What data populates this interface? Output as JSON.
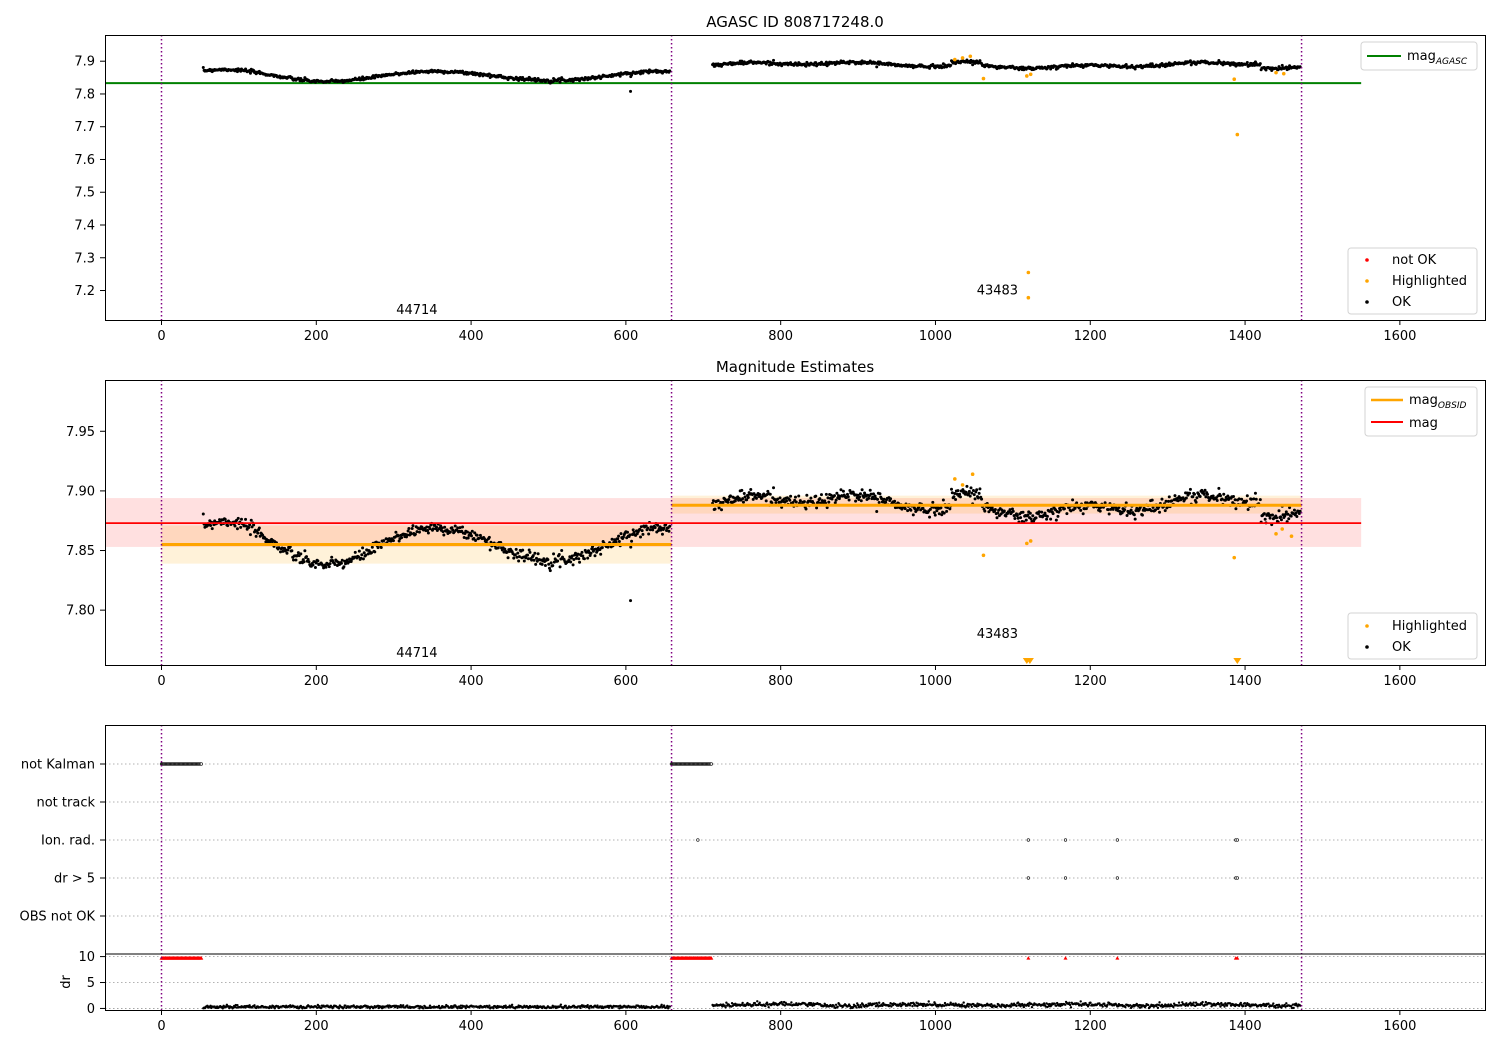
{
  "figure": {
    "x_ticks": [
      0,
      200,
      400,
      600,
      800,
      1000,
      1200,
      1400,
      1600
    ],
    "x_range": [
      -73,
      1710
    ],
    "obs_boundaries": [
      0,
      659,
      1473
    ],
    "colors": {
      "ok": "#000000",
      "highlighted": "#ffa500",
      "not_ok": "#ff0000",
      "agasc_line": "#008000",
      "obsid_line": "#ffa500",
      "mag_line": "#ff0000",
      "boundary": "#800080"
    }
  },
  "chart_data": [
    {
      "type": "scatter",
      "title": "AGASC ID 808717248.0",
      "xlabel": "",
      "ylabel": "",
      "ylim": [
        7.11,
        7.98
      ],
      "y_ticks": [
        7.2,
        7.3,
        7.4,
        7.5,
        7.6,
        7.7,
        7.8,
        7.9
      ],
      "y_tick_labels": [
        "7.2",
        "7.3",
        "7.4",
        "7.5",
        "7.6",
        "7.7",
        "7.8",
        "7.9"
      ],
      "obsid_labels": [
        {
          "text": "44714",
          "x": 330,
          "y": 7.14
        },
        {
          "text": "43483",
          "x": 1080,
          "y": 7.2
        }
      ],
      "mag_agasc": {
        "value": 7.833,
        "x_range": [
          -73,
          1550
        ]
      },
      "highlighted_points": [
        [
          1025,
          7.905
        ],
        [
          1035,
          7.91
        ],
        [
          1045,
          7.915
        ],
        [
          1062,
          7.847
        ],
        [
          1118,
          7.855
        ],
        [
          1120,
          7.255
        ],
        [
          1120,
          7.178
        ],
        [
          1123,
          7.86
        ],
        [
          1386,
          7.845
        ],
        [
          1390,
          7.676
        ],
        [
          1440,
          7.865
        ],
        [
          1450,
          7.862
        ]
      ],
      "legend": {
        "lines": [
          "mag$_{AGASC}$"
        ],
        "markers": [
          "not OK",
          "Highlighted",
          "OK"
        ]
      }
    },
    {
      "type": "scatter",
      "title": "Magnitude Estimates",
      "xlabel": "",
      "ylabel": "",
      "ylim": [
        7.754,
        7.993
      ],
      "y_ticks": [
        7.8,
        7.85,
        7.9,
        7.95
      ],
      "y_tick_labels": [
        "7.80",
        "7.85",
        "7.90",
        "7.95"
      ],
      "obsid_labels": [
        {
          "text": "44714",
          "x": 330,
          "y": 7.764
        },
        {
          "text": "43483",
          "x": 1080,
          "y": 7.78
        }
      ],
      "mag": {
        "value": 7.873,
        "band": [
          7.853,
          7.894
        ],
        "x_range": [
          -73,
          1550
        ]
      },
      "mag_obsid": [
        {
          "x_range": [
            0,
            659
          ],
          "value": 7.855,
          "band": [
            7.839,
            7.871
          ]
        },
        {
          "x_range": [
            659,
            1473
          ],
          "value": 7.888,
          "band": [
            7.881,
            7.896
          ]
        }
      ],
      "highlighted_points": [
        [
          1025,
          7.91
        ],
        [
          1035,
          7.905
        ],
        [
          1048,
          7.914
        ],
        [
          1062,
          7.846
        ],
        [
          1118,
          7.856
        ],
        [
          1123,
          7.858
        ],
        [
          1386,
          7.844
        ],
        [
          1440,
          7.864
        ],
        [
          1448,
          7.868
        ],
        [
          1460,
          7.862
        ]
      ],
      "clipped_markers": [
        1118,
        1122,
        1390
      ],
      "legend": {
        "lines": [
          "mag$_{OBSID}$",
          "mag"
        ],
        "markers": [
          "Highlighted",
          "OK"
        ]
      }
    },
    {
      "type": "scatter",
      "title": "",
      "flag_rows": [
        "not Kalman",
        "not track",
        "Ion. rad.",
        "dr > 5",
        "OBS not OK"
      ],
      "flags": {
        "not Kalman": {
          "ranges": [
            [
              0,
              52
            ],
            [
              659,
              711
            ]
          ]
        },
        "Ion. rad.": {
          "points": [
            693,
            1120,
            1168,
            1235,
            1388,
            1390
          ]
        },
        "dr > 5": {
          "points": [
            1120,
            1168,
            1235,
            1388,
            1390
          ]
        }
      },
      "dr_ticks": [
        0,
        5,
        10
      ],
      "dr_tick_labels": [
        "0",
        "5",
        "10"
      ],
      "ylabel": "dr",
      "dr_ylim": [
        -0.3,
        10.5
      ],
      "dr_clipped": {
        "ranges": [
          [
            0,
            52
          ],
          [
            659,
            711
          ]
        ],
        "points": [
          1120,
          1168,
          1235,
          1388,
          1390
        ]
      }
    }
  ]
}
